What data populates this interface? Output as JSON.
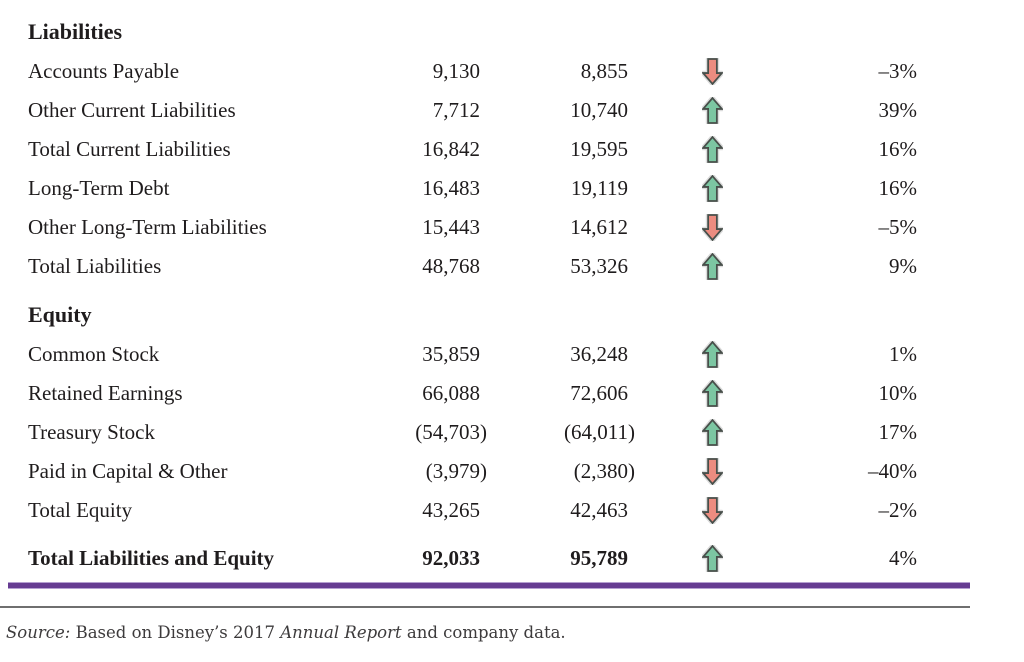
{
  "colors": {
    "text": "#1f1c1d",
    "up_arrow_fill": "#7cc6a2",
    "down_arrow_fill": "#ec8c80",
    "arrow_stroke": "#474f4a",
    "arrow_halo": "#dcdcdc",
    "rule_purple": "#663c92",
    "rule_gray": "#6f6f6f"
  },
  "table": {
    "sections": [
      {
        "header": "Liabilities",
        "rows": [
          {
            "label": "Accounts Payable",
            "y2016": "9,130",
            "y2017": "8,855",
            "direction": "down",
            "change": "–3%"
          },
          {
            "label": "Other Current Liabilities",
            "y2016": "7,712",
            "y2017": "10,740",
            "direction": "up",
            "change": "39%"
          },
          {
            "label": "Total Current Liabilities",
            "y2016": "16,842",
            "y2017": "19,595",
            "direction": "up",
            "change": "16%"
          },
          {
            "label": "Long-Term Debt",
            "y2016": "16,483",
            "y2017": "19,119",
            "direction": "up",
            "change": "16%"
          },
          {
            "label": "Other Long-Term Liabilities",
            "y2016": "15,443",
            "y2017": "14,612",
            "direction": "down",
            "change": "–5%"
          },
          {
            "label": "Total Liabilities",
            "y2016": "48,768",
            "y2017": "53,326",
            "direction": "up",
            "change": "9%"
          }
        ]
      },
      {
        "header": "Equity",
        "rows": [
          {
            "label": "Common Stock",
            "y2016": "35,859",
            "y2017": "36,248",
            "direction": "up",
            "change": "1%"
          },
          {
            "label": "Retained Earnings",
            "y2016": "66,088",
            "y2017": "72,606",
            "direction": "up",
            "change": "10%"
          },
          {
            "label": "Treasury Stock",
            "y2016": "(54,703)",
            "y2017": "(64,011)",
            "direction": "up",
            "change": "17%"
          },
          {
            "label": "Paid in Capital & Other",
            "y2016": "(3,979)",
            "y2017": "(2,380)",
            "direction": "down",
            "change": "–40%"
          },
          {
            "label": "Total Equity",
            "y2016": "43,265",
            "y2017": "42,463",
            "direction": "down",
            "change": "–2%"
          }
        ]
      }
    ],
    "total_row": {
      "label": "Total Liabilities and Equity",
      "y2016": "92,033",
      "y2017": "95,789",
      "direction": "up",
      "change": "4%"
    }
  },
  "source": {
    "label_italic": "Source:",
    "text_a": " Based on Disney’s 2017 ",
    "title_italic": "Annual Report",
    "text_b": " and company data."
  }
}
